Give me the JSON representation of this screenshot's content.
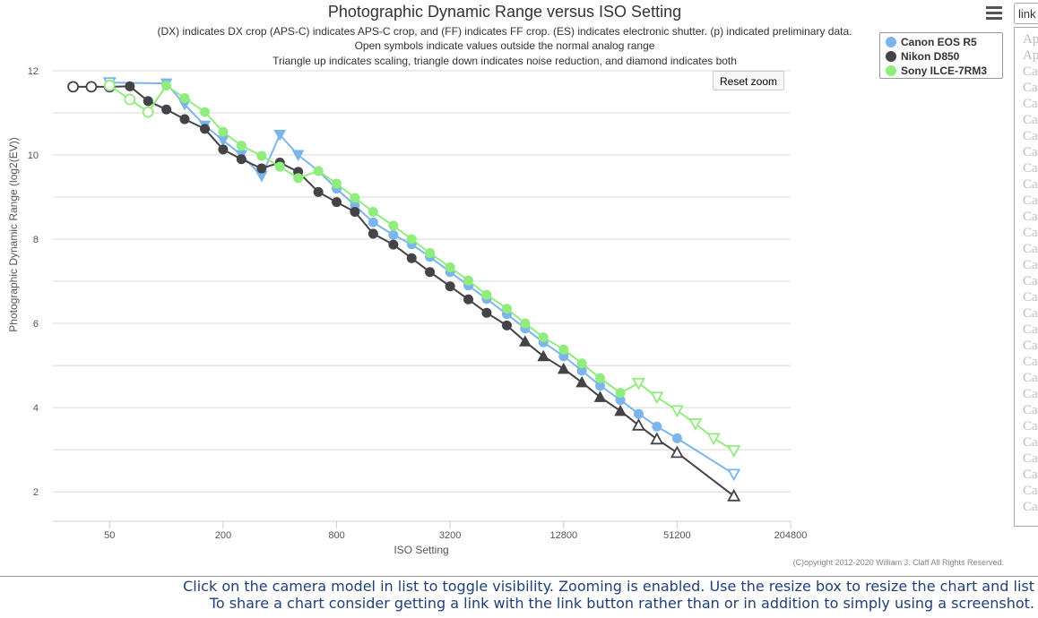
{
  "chart_data": {
    "type": "line",
    "title": "Photographic Dynamic Range versus ISO Setting",
    "subtitle_lines": [
      "(DX) indicates DX crop (APS-C) indicates APS-C crop, and (FF) indicates FF crop. (ES) indicates electronic shutter. (p) indicated preliminary data.",
      "Open symbols indicate values outside the normal analog range",
      "Triangle up indicates scaling, triangle down indicates noise reduction, and diamond indicates both"
    ],
    "xlabel": "ISO Setting",
    "ylabel": "Photographic Dynamic Range (log2(EV))",
    "x_scale": "log2",
    "xlim": [
      25,
      204800
    ],
    "ylim": [
      1.3,
      12
    ],
    "x_ticks": [
      50,
      200,
      800,
      3200,
      12800,
      51200,
      204800
    ],
    "y_ticks": [
      2,
      4,
      6,
      8,
      10,
      12
    ],
    "grid": true,
    "legend_position": "top-right",
    "series": [
      {
        "name": "Canon EOS R5",
        "color": "#7cb5ec",
        "points": [
          {
            "x": 50,
            "y": 11.72,
            "m": "tdo"
          },
          {
            "x": 100,
            "y": 11.7,
            "m": "tdf"
          },
          {
            "x": 125,
            "y": 11.2,
            "m": "tdf"
          },
          {
            "x": 160,
            "y": 10.7,
            "m": "tdf"
          },
          {
            "x": 200,
            "y": 10.35,
            "m": "tdf"
          },
          {
            "x": 250,
            "y": 10.0,
            "m": "tdf"
          },
          {
            "x": 320,
            "y": 9.5,
            "m": "tdf"
          },
          {
            "x": 400,
            "y": 10.48,
            "m": "tdf"
          },
          {
            "x": 500,
            "y": 10.0,
            "m": "tdf"
          },
          {
            "x": 640,
            "y": 9.62,
            "m": "c"
          },
          {
            "x": 800,
            "y": 9.2,
            "m": "c"
          },
          {
            "x": 1000,
            "y": 8.8,
            "m": "c"
          },
          {
            "x": 1250,
            "y": 8.4,
            "m": "c"
          },
          {
            "x": 1600,
            "y": 8.1,
            "m": "c"
          },
          {
            "x": 2000,
            "y": 7.88,
            "m": "c"
          },
          {
            "x": 2500,
            "y": 7.58,
            "m": "c"
          },
          {
            "x": 3200,
            "y": 7.22,
            "m": "c"
          },
          {
            "x": 4000,
            "y": 6.9,
            "m": "c"
          },
          {
            "x": 5000,
            "y": 6.58,
            "m": "c"
          },
          {
            "x": 6400,
            "y": 6.22,
            "m": "c"
          },
          {
            "x": 8000,
            "y": 5.88,
            "m": "c"
          },
          {
            "x": 10000,
            "y": 5.55,
            "m": "c"
          },
          {
            "x": 12800,
            "y": 5.22,
            "m": "c"
          },
          {
            "x": 16000,
            "y": 4.88,
            "m": "c"
          },
          {
            "x": 20000,
            "y": 4.52,
            "m": "c"
          },
          {
            "x": 25600,
            "y": 4.18,
            "m": "c"
          },
          {
            "x": 32000,
            "y": 3.85,
            "m": "c"
          },
          {
            "x": 40000,
            "y": 3.55,
            "m": "c"
          },
          {
            "x": 51200,
            "y": 3.27,
            "m": "c"
          },
          {
            "x": 102400,
            "y": 2.42,
            "m": "tdo"
          }
        ]
      },
      {
        "name": "Nikon D850",
        "color": "#434348",
        "points": [
          {
            "x": 32,
            "y": 11.62,
            "m": "co"
          },
          {
            "x": 40,
            "y": 11.62,
            "m": "co"
          },
          {
            "x": 50,
            "y": 11.62,
            "m": "co"
          },
          {
            "x": 64,
            "y": 11.63,
            "m": "c"
          },
          {
            "x": 80,
            "y": 11.28,
            "m": "c"
          },
          {
            "x": 100,
            "y": 11.08,
            "m": "c"
          },
          {
            "x": 125,
            "y": 10.85,
            "m": "c"
          },
          {
            "x": 160,
            "y": 10.62,
            "m": "c"
          },
          {
            "x": 200,
            "y": 10.13,
            "m": "c"
          },
          {
            "x": 250,
            "y": 9.9,
            "m": "c"
          },
          {
            "x": 320,
            "y": 9.68,
            "m": "c"
          },
          {
            "x": 400,
            "y": 9.82,
            "m": "c"
          },
          {
            "x": 500,
            "y": 9.6,
            "m": "c"
          },
          {
            "x": 640,
            "y": 9.12,
            "m": "c"
          },
          {
            "x": 800,
            "y": 8.88,
            "m": "c"
          },
          {
            "x": 1000,
            "y": 8.65,
            "m": "c"
          },
          {
            "x": 1250,
            "y": 8.13,
            "m": "c"
          },
          {
            "x": 1600,
            "y": 7.87,
            "m": "c"
          },
          {
            "x": 2000,
            "y": 7.55,
            "m": "c"
          },
          {
            "x": 2500,
            "y": 7.22,
            "m": "c"
          },
          {
            "x": 3200,
            "y": 6.88,
            "m": "c"
          },
          {
            "x": 4000,
            "y": 6.57,
            "m": "c"
          },
          {
            "x": 5000,
            "y": 6.25,
            "m": "c"
          },
          {
            "x": 6400,
            "y": 5.95,
            "m": "c"
          },
          {
            "x": 8000,
            "y": 5.57,
            "m": "tuf"
          },
          {
            "x": 10000,
            "y": 5.22,
            "m": "tuf"
          },
          {
            "x": 12800,
            "y": 4.92,
            "m": "tuf"
          },
          {
            "x": 16000,
            "y": 4.6,
            "m": "tuf"
          },
          {
            "x": 20000,
            "y": 4.25,
            "m": "tuf"
          },
          {
            "x": 25600,
            "y": 3.92,
            "m": "tuf"
          },
          {
            "x": 32000,
            "y": 3.58,
            "m": "tuo"
          },
          {
            "x": 40000,
            "y": 3.25,
            "m": "tuo"
          },
          {
            "x": 51200,
            "y": 2.93,
            "m": "tuo"
          },
          {
            "x": 102400,
            "y": 1.9,
            "m": "tuo"
          }
        ]
      },
      {
        "name": "Sony ILCE-7RM3",
        "color": "#90ed7d",
        "points": [
          {
            "x": 50,
            "y": 11.65,
            "m": "co"
          },
          {
            "x": 64,
            "y": 11.32,
            "m": "co"
          },
          {
            "x": 80,
            "y": 11.02,
            "m": "co"
          },
          {
            "x": 100,
            "y": 11.65,
            "m": "c"
          },
          {
            "x": 125,
            "y": 11.35,
            "m": "c"
          },
          {
            "x": 160,
            "y": 11.02,
            "m": "c"
          },
          {
            "x": 200,
            "y": 10.55,
            "m": "c"
          },
          {
            "x": 250,
            "y": 10.22,
            "m": "c"
          },
          {
            "x": 320,
            "y": 9.98,
            "m": "c"
          },
          {
            "x": 400,
            "y": 9.72,
            "m": "c"
          },
          {
            "x": 500,
            "y": 9.45,
            "m": "c"
          },
          {
            "x": 640,
            "y": 9.62,
            "m": "c"
          },
          {
            "x": 800,
            "y": 9.32,
            "m": "c"
          },
          {
            "x": 1000,
            "y": 8.98,
            "m": "c"
          },
          {
            "x": 1250,
            "y": 8.65,
            "m": "c"
          },
          {
            "x": 1600,
            "y": 8.32,
            "m": "c"
          },
          {
            "x": 2000,
            "y": 8.0,
            "m": "c"
          },
          {
            "x": 2500,
            "y": 7.67,
            "m": "c"
          },
          {
            "x": 3200,
            "y": 7.33,
            "m": "c"
          },
          {
            "x": 4000,
            "y": 7.02,
            "m": "c"
          },
          {
            "x": 5000,
            "y": 6.68,
            "m": "c"
          },
          {
            "x": 6400,
            "y": 6.35,
            "m": "c"
          },
          {
            "x": 8000,
            "y": 6.0,
            "m": "c"
          },
          {
            "x": 10000,
            "y": 5.67,
            "m": "c"
          },
          {
            "x": 12800,
            "y": 5.38,
            "m": "c"
          },
          {
            "x": 16000,
            "y": 5.05,
            "m": "c"
          },
          {
            "x": 20000,
            "y": 4.7,
            "m": "c"
          },
          {
            "x": 25600,
            "y": 4.35,
            "m": "c"
          },
          {
            "x": 32000,
            "y": 4.58,
            "m": "tdo"
          },
          {
            "x": 40000,
            "y": 4.25,
            "m": "tdo"
          },
          {
            "x": 51200,
            "y": 3.93,
            "m": "tdo"
          },
          {
            "x": 64000,
            "y": 3.62,
            "m": "tdo"
          },
          {
            "x": 80000,
            "y": 3.27,
            "m": "tdo"
          },
          {
            "x": 102400,
            "y": 2.98,
            "m": "tdo"
          }
        ]
      }
    ],
    "credits": "(C)opyright 2012-2020 William J. Claff All Rights Reserved."
  },
  "controls": {
    "reset_zoom": "Reset zoom",
    "link": "link",
    "menu_icon": "hamburger-menu-icon"
  },
  "camera_list": [
    "Ap",
    "Ap",
    "Ca",
    "Ca",
    "Ca",
    "Ca",
    "Ca",
    "Ca",
    "Ca",
    "Ca",
    "Ca",
    "Ca",
    "Ca",
    "Ca",
    "Ca",
    "Ca",
    "Ca",
    "Ca",
    "Ca",
    "Ca",
    "Ca",
    "Ca",
    "Ca",
    "Ca",
    "Ca",
    "Ca",
    "Ca",
    "Ca",
    "Ca",
    "Ca"
  ],
  "footer": {
    "line1": "Click on the camera model in list to toggle visibility. Zooming is enabled. Use the resize box to resize the chart and list",
    "line2": "To share a chart consider getting a link with the link button rather than or in addition to simply using a screenshot."
  }
}
